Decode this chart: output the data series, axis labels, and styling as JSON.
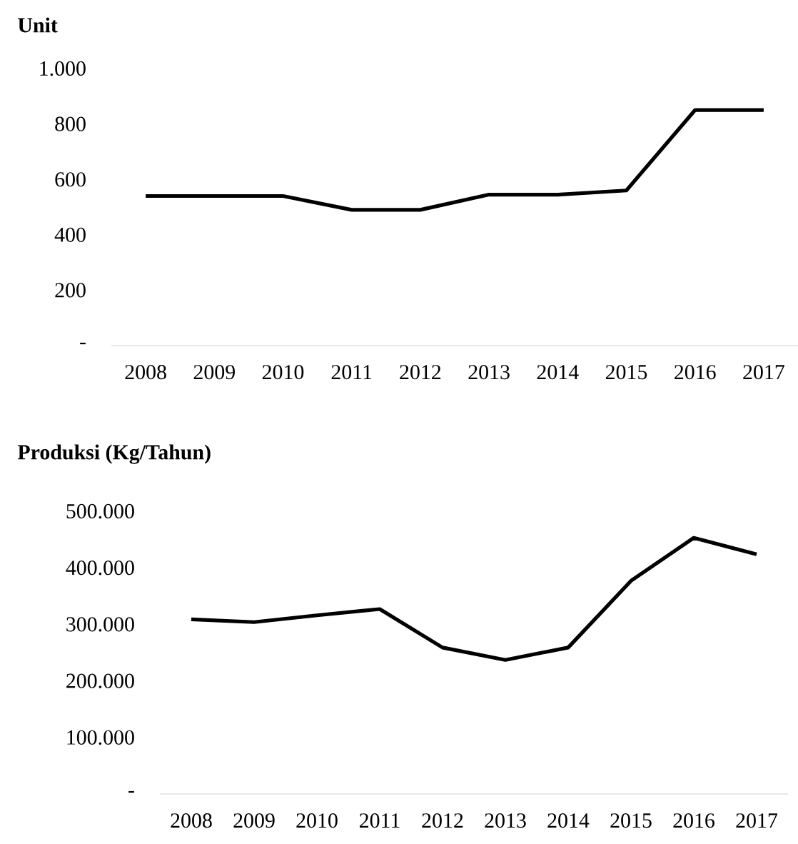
{
  "chart_data": [
    {
      "type": "line",
      "ylabel": "Unit",
      "categories": [
        "2008",
        "2009",
        "2010",
        "2011",
        "2012",
        "2013",
        "2014",
        "2015",
        "2016",
        "2017"
      ],
      "series": [
        {
          "color": "#000000",
          "values": [
            540,
            540,
            540,
            490,
            490,
            545,
            545,
            560,
            850,
            850
          ]
        }
      ],
      "ylim": [
        0,
        1000
      ],
      "yticks": [
        {
          "value": 0,
          "label": "-"
        },
        200,
        400,
        600,
        800,
        {
          "value": 1000,
          "label": "1.000"
        }
      ],
      "line_style": "solid",
      "marker": "none"
    },
    {
      "type": "line",
      "ylabel": "Produksi (Kg/Tahun)",
      "categories": [
        "2008",
        "2009",
        "2010",
        "2011",
        "2012",
        "2013",
        "2014",
        "2015",
        "2016",
        "2017"
      ],
      "series": [
        {
          "color": "#000000",
          "values": [
            309000,
            304000,
            316000,
            327000,
            259000,
            237000,
            259000,
            377000,
            453000,
            424000
          ]
        }
      ],
      "ylim": [
        0,
        500000
      ],
      "yticks": [
        {
          "value": 0,
          "label": "-"
        },
        {
          "value": 100000,
          "label": "100.000"
        },
        {
          "value": 200000,
          "label": "200.000"
        },
        {
          "value": 300000,
          "label": "300.000"
        },
        {
          "value": 400000,
          "label": "400.000"
        },
        {
          "value": 500000,
          "label": "500.000"
        }
      ],
      "line_style": "solid",
      "marker": "none"
    }
  ]
}
